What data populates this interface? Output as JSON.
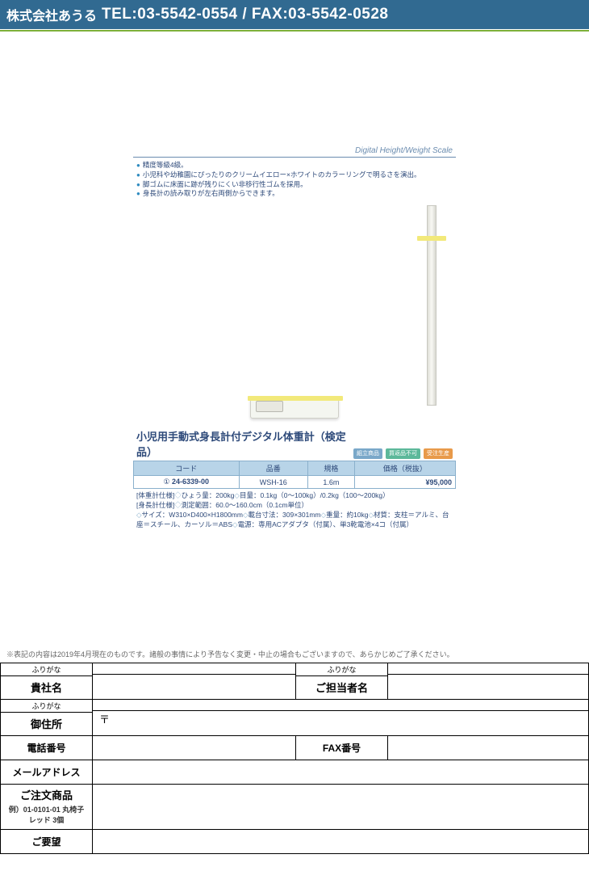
{
  "header": {
    "company": "株式会社あうる",
    "contact": "TEL:03-5542-0554 / FAX:03-5542-0528"
  },
  "catalog": {
    "category_en": "Digital Height/Weight Scale",
    "bullets": [
      "精度等級4級。",
      "小児科や幼稚園にぴったりのクリームイエロー×ホワイトのカラーリングで明るさを演出。",
      "脚ゴムに床面に跡が残りにくい非移行性ゴムを採用。",
      "身長計の読み取りが左右両側からできます。"
    ],
    "product_title": "小児用手動式身長計付デジタル体重計（検定品）",
    "tags": {
      "assembly": "組立商品",
      "noreturn": "買返品不可",
      "madetoorder": "受注生産"
    },
    "spec_headers": {
      "code": "コード",
      "product_no": "品番",
      "spec": "規格",
      "price": "価格（税抜）"
    },
    "spec_row": {
      "index": "①",
      "code": "24-6339-00",
      "product_no": "WSH-16",
      "spec": "1.6m",
      "price": "¥95,000"
    },
    "spec_details": "[体重計仕様]◇ひょう量：200kg◇目量：0.1kg（0〜100kg）/0.2kg（100〜200kg）\n[身長計仕様]◇測定範囲：60.0〜160.0cm（0.1cm単位）\n◇サイズ：W310×D400×H1800mm◇載台寸法：309×301mm◇重量：約10kg◇材質：支柱＝アルミ、台座＝スチール、カーソル＝ABS◇電源：専用ACアダプタ（付属）、単3乾電池×4コ（付属）"
  },
  "disclaimer": "※表記の内容は2019年4月現在のものです。諸般の事情により予告なく変更・中止の場合もございますので、あらかじめご了承ください。",
  "form": {
    "furigana": "ふりがな",
    "company_name": "貴社名",
    "contact_person": "ご担当者名",
    "address": "御住所",
    "postal_mark": "〒",
    "phone": "電話番号",
    "fax": "FAX番号",
    "email": "メールアドレス",
    "order_items": "ご注文商品",
    "order_example": "例）01-0101-01 丸椅子 レッド 3個",
    "requests": "ご要望"
  }
}
